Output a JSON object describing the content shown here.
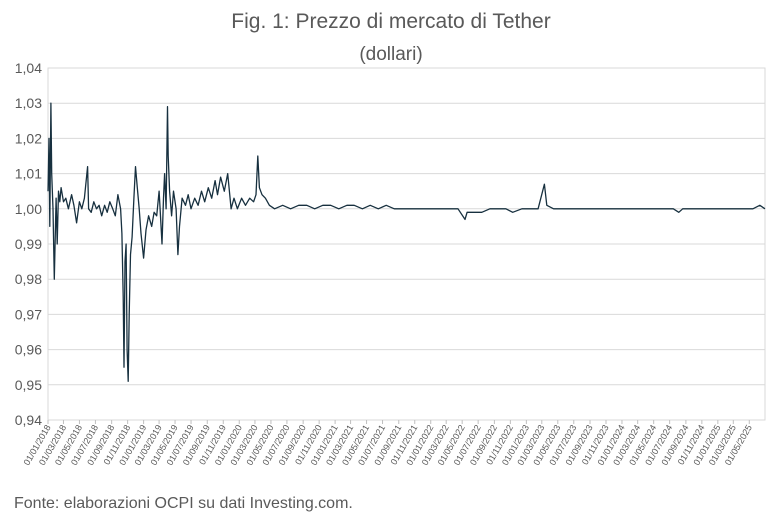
{
  "title": "Fig. 1: Prezzo di mercato di Tether",
  "subtitle": "(dollari)",
  "footer": "Fonte: elaborazioni OCPI su dati Investing.com.",
  "colors": {
    "line": "#17303f",
    "grid": "#d9d9d9",
    "axis": "#bfbfbf",
    "text": "#595959"
  },
  "chart_data": {
    "type": "line",
    "title": "Fig. 1: Prezzo di mercato di Tether",
    "subtitle": "(dollari)",
    "xlabel": "",
    "ylabel": "",
    "ylim": [
      0.94,
      1.04
    ],
    "y_ticks": [
      "0,94",
      "0,95",
      "0,96",
      "0,97",
      "0,98",
      "0,99",
      "1,00",
      "1,01",
      "1,02",
      "1,03",
      "1,04"
    ],
    "x_range": [
      "2018-01-01",
      "2025-06-30"
    ],
    "x_ticks": [
      "01/01/2018",
      "01/03/2018",
      "01/05/2018",
      "01/07/2018",
      "01/09/2018",
      "01/11/2018",
      "01/01/2019",
      "01/03/2019",
      "01/05/2019",
      "01/07/2019",
      "01/09/2019",
      "01/11/2019",
      "01/01/2020",
      "01/03/2020",
      "01/05/2020",
      "01/07/2020",
      "01/09/2020",
      "01/11/2020",
      "01/01/2021",
      "01/03/2021",
      "01/05/2021",
      "01/07/2021",
      "01/09/2021",
      "01/11/2021",
      "01/01/2022",
      "01/03/2022",
      "01/05/2022",
      "01/07/2022",
      "01/09/2022",
      "01/11/2022",
      "01/01/2023",
      "01/03/2023",
      "01/05/2023",
      "01/07/2023",
      "01/09/2023",
      "01/11/2023",
      "01/01/2024",
      "01/03/2024",
      "01/05/2024",
      "01/07/2024",
      "01/09/2024",
      "01/11/2024",
      "01/01/2025",
      "01/03/2025",
      "01/05/2025"
    ],
    "grid": true,
    "legend": "none",
    "series": [
      {
        "points": [
          [
            "2018-01-01",
            1.005
          ],
          [
            "2018-01-05",
            1.02
          ],
          [
            "2018-01-08",
            0.995
          ],
          [
            "2018-01-12",
            1.03
          ],
          [
            "2018-01-15",
            1.01
          ],
          [
            "2018-01-20",
            1.0
          ],
          [
            "2018-01-25",
            0.98
          ],
          [
            "2018-02-01",
            1.003
          ],
          [
            "2018-02-05",
            0.99
          ],
          [
            "2018-02-10",
            1.005
          ],
          [
            "2018-02-15",
            1.002
          ],
          [
            "2018-02-20",
            1.006
          ],
          [
            "2018-03-01",
            1.002
          ],
          [
            "2018-03-10",
            1.003
          ],
          [
            "2018-03-20",
            1.0
          ],
          [
            "2018-04-01",
            1.004
          ],
          [
            "2018-04-10",
            1.001
          ],
          [
            "2018-04-20",
            0.996
          ],
          [
            "2018-05-01",
            1.002
          ],
          [
            "2018-05-10",
            1.0
          ],
          [
            "2018-05-20",
            1.003
          ],
          [
            "2018-06-01",
            1.012
          ],
          [
            "2018-06-05",
            1.0
          ],
          [
            "2018-06-15",
            0.999
          ],
          [
            "2018-06-25",
            1.002
          ],
          [
            "2018-07-05",
            1.0
          ],
          [
            "2018-07-15",
            1.001
          ],
          [
            "2018-07-25",
            0.998
          ],
          [
            "2018-08-05",
            1.001
          ],
          [
            "2018-08-15",
            0.999
          ],
          [
            "2018-08-25",
            1.002
          ],
          [
            "2018-09-05",
            1.0
          ],
          [
            "2018-09-15",
            0.998
          ],
          [
            "2018-09-25",
            1.004
          ],
          [
            "2018-10-05",
            1.0
          ],
          [
            "2018-10-10",
            0.993
          ],
          [
            "2018-10-15",
            0.975
          ],
          [
            "2018-10-18",
            0.955
          ],
          [
            "2018-10-22",
            0.985
          ],
          [
            "2018-10-26",
            0.99
          ],
          [
            "2018-10-30",
            0.96
          ],
          [
            "2018-11-03",
            0.951
          ],
          [
            "2018-11-07",
            0.97
          ],
          [
            "2018-11-12",
            0.987
          ],
          [
            "2018-11-18",
            0.992
          ],
          [
            "2018-11-25",
            1.003
          ],
          [
            "2018-12-01",
            1.012
          ],
          [
            "2018-12-08",
            1.006
          ],
          [
            "2018-12-15",
            1.0
          ],
          [
            "2018-12-22",
            0.993
          ],
          [
            "2019-01-01",
            0.986
          ],
          [
            "2019-01-10",
            0.994
          ],
          [
            "2019-01-20",
            0.998
          ],
          [
            "2019-02-01",
            0.995
          ],
          [
            "2019-02-10",
            0.999
          ],
          [
            "2019-02-20",
            0.998
          ],
          [
            "2019-03-01",
            1.005
          ],
          [
            "2019-03-05",
            1.0
          ],
          [
            "2019-03-12",
            0.99
          ],
          [
            "2019-03-18",
            1.003
          ],
          [
            "2019-03-22",
            1.01
          ],
          [
            "2019-03-28",
            1.0
          ],
          [
            "2019-04-02",
            1.029
          ],
          [
            "2019-04-05",
            1.015
          ],
          [
            "2019-04-10",
            1.005
          ],
          [
            "2019-04-18",
            0.998
          ],
          [
            "2019-04-25",
            1.005
          ],
          [
            "2019-05-05",
            1.0
          ],
          [
            "2019-05-12",
            0.987
          ],
          [
            "2019-05-18",
            0.995
          ],
          [
            "2019-05-28",
            1.003
          ],
          [
            "2019-06-10",
            1.001
          ],
          [
            "2019-06-20",
            1.004
          ],
          [
            "2019-07-01",
            1.0
          ],
          [
            "2019-07-15",
            1.003
          ],
          [
            "2019-07-28",
            1.001
          ],
          [
            "2019-08-10",
            1.005
          ],
          [
            "2019-08-22",
            1.002
          ],
          [
            "2019-09-05",
            1.006
          ],
          [
            "2019-09-18",
            1.003
          ],
          [
            "2019-10-01",
            1.008
          ],
          [
            "2019-10-10",
            1.004
          ],
          [
            "2019-10-22",
            1.009
          ],
          [
            "2019-11-05",
            1.005
          ],
          [
            "2019-11-18",
            1.01
          ],
          [
            "2019-12-01",
            1.0
          ],
          [
            "2019-12-12",
            1.003
          ],
          [
            "2019-12-25",
            1.0
          ],
          [
            "2020-01-10",
            1.003
          ],
          [
            "2020-01-25",
            1.001
          ],
          [
            "2020-02-10",
            1.003
          ],
          [
            "2020-02-25",
            1.002
          ],
          [
            "2020-03-05",
            1.004
          ],
          [
            "2020-03-12",
            1.015
          ],
          [
            "2020-03-18",
            1.006
          ],
          [
            "2020-03-28",
            1.004
          ],
          [
            "2020-04-10",
            1.003
          ],
          [
            "2020-04-25",
            1.001
          ],
          [
            "2020-05-15",
            1.0
          ],
          [
            "2020-06-15",
            1.001
          ],
          [
            "2020-07-15",
            1.0
          ],
          [
            "2020-08-15",
            1.001
          ],
          [
            "2020-09-15",
            1.001
          ],
          [
            "2020-10-15",
            1.0
          ],
          [
            "2020-11-15",
            1.001
          ],
          [
            "2020-12-15",
            1.001
          ],
          [
            "2021-01-15",
            1.0
          ],
          [
            "2021-02-15",
            1.001
          ],
          [
            "2021-03-15",
            1.001
          ],
          [
            "2021-04-15",
            1.0
          ],
          [
            "2021-05-15",
            1.001
          ],
          [
            "2021-06-15",
            1.0
          ],
          [
            "2021-07-15",
            1.001
          ],
          [
            "2021-08-15",
            1.0
          ],
          [
            "2021-09-15",
            1.0
          ],
          [
            "2021-10-15",
            1.0
          ],
          [
            "2021-11-15",
            1.0
          ],
          [
            "2021-12-15",
            1.0
          ],
          [
            "2022-01-15",
            1.0
          ],
          [
            "2022-02-15",
            1.0
          ],
          [
            "2022-03-15",
            1.0
          ],
          [
            "2022-04-15",
            1.0
          ],
          [
            "2022-05-12",
            0.997
          ],
          [
            "2022-05-20",
            0.999
          ],
          [
            "2022-06-15",
            0.999
          ],
          [
            "2022-07-15",
            0.999
          ],
          [
            "2022-08-15",
            1.0
          ],
          [
            "2022-09-15",
            1.0
          ],
          [
            "2022-10-15",
            1.0
          ],
          [
            "2022-11-10",
            0.999
          ],
          [
            "2022-12-15",
            1.0
          ],
          [
            "2023-01-15",
            1.0
          ],
          [
            "2023-02-15",
            1.0
          ],
          [
            "2023-03-11",
            1.007
          ],
          [
            "2023-03-20",
            1.001
          ],
          [
            "2023-04-15",
            1.0
          ],
          [
            "2023-05-15",
            1.0
          ],
          [
            "2023-06-15",
            1.0
          ],
          [
            "2023-07-15",
            1.0
          ],
          [
            "2023-08-15",
            1.0
          ],
          [
            "2023-09-15",
            1.0
          ],
          [
            "2023-10-15",
            1.0
          ],
          [
            "2023-11-15",
            1.0
          ],
          [
            "2023-12-15",
            1.0
          ],
          [
            "2024-01-15",
            1.0
          ],
          [
            "2024-02-15",
            1.0
          ],
          [
            "2024-03-15",
            1.0
          ],
          [
            "2024-04-15",
            1.0
          ],
          [
            "2024-05-15",
            1.0
          ],
          [
            "2024-06-15",
            1.0
          ],
          [
            "2024-07-15",
            1.0
          ],
          [
            "2024-08-05",
            0.999
          ],
          [
            "2024-08-20",
            1.0
          ],
          [
            "2024-09-15",
            1.0
          ],
          [
            "2024-10-15",
            1.0
          ],
          [
            "2024-11-15",
            1.0
          ],
          [
            "2024-12-15",
            1.0
          ],
          [
            "2025-01-15",
            1.0
          ],
          [
            "2025-02-15",
            1.0
          ],
          [
            "2025-03-15",
            1.0
          ],
          [
            "2025-04-15",
            1.0
          ],
          [
            "2025-05-15",
            1.0
          ],
          [
            "2025-06-10",
            1.001
          ],
          [
            "2025-06-30",
            1.0
          ]
        ]
      }
    ]
  }
}
